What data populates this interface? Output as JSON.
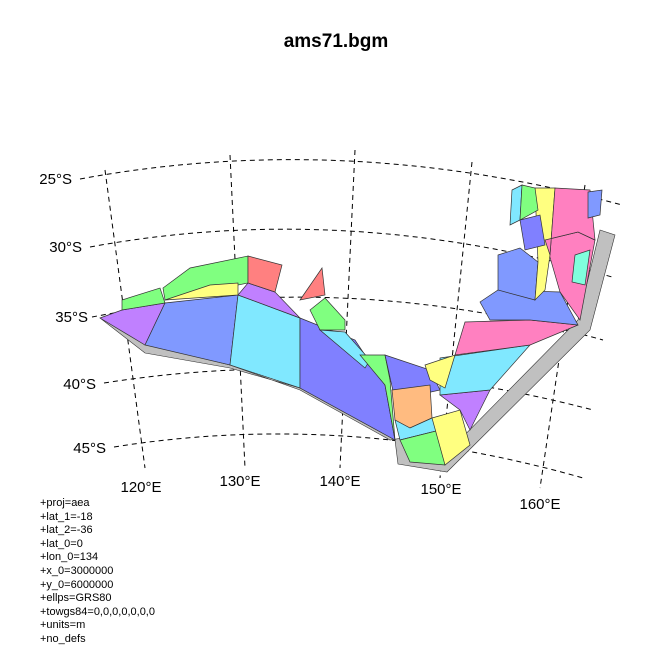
{
  "title": "ams71.bgm",
  "latitude_labels": [
    "25°S",
    "30°S",
    "35°S",
    "40°S",
    "45°S"
  ],
  "longitude_labels": [
    "120°E",
    "130°E",
    "140°E",
    "150°E",
    "160°E"
  ],
  "projection_params": [
    "+proj=aea",
    "+lat_1=-18",
    "+lat_2=-36",
    "+lat_0=0",
    "+lon_0=134",
    "+x_0=3000000",
    "+y_0=6000000",
    "+ellps=GRS80",
    "+towgs84=0,0,0,0,0,0,0",
    "+units=m",
    "+no_defs"
  ],
  "colors": {
    "blue": "#8099ff",
    "cyan": "#80e8ff",
    "green": "#80ff80",
    "yellow": "#ffff80",
    "pink": "#ff80c0",
    "purple": "#c080ff",
    "orange": "#ffbb80",
    "red": "#ff8080",
    "teal": "#80ffdd",
    "violet": "#8080ff",
    "shadow": "#c0c0c0",
    "land": "#ffffff"
  }
}
